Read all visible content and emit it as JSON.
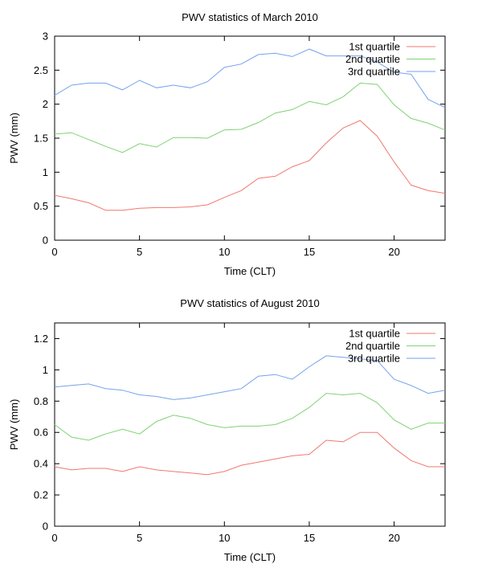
{
  "chart_data": [
    {
      "type": "line",
      "title": "PWV statistics of March 2010",
      "xlabel": "Time (CLT)",
      "ylabel": "PWV (mm)",
      "xlim": [
        0,
        23
      ],
      "ylim": [
        0,
        3
      ],
      "xticks": [
        0,
        5,
        10,
        15,
        20
      ],
      "xtick_labels": [
        "0",
        "5",
        "10",
        "15",
        "20"
      ],
      "yticks": [
        0,
        0.5,
        1,
        1.5,
        2,
        2.5,
        3
      ],
      "ytick_labels": [
        "0",
        "0.5",
        "1",
        "1.5",
        "2",
        "2.5",
        "3"
      ],
      "grid": false,
      "legend_position": "top-right",
      "x": [
        0,
        1,
        2,
        3,
        4,
        5,
        6,
        7,
        8,
        9,
        10,
        11,
        12,
        13,
        14,
        15,
        16,
        17,
        18,
        19,
        20,
        21,
        22,
        23
      ],
      "series": [
        {
          "name": "1st quartile",
          "color": "#f0786e",
          "values": [
            0.66,
            0.61,
            0.55,
            0.44,
            0.44,
            0.47,
            0.48,
            0.48,
            0.49,
            0.52,
            0.63,
            0.73,
            0.91,
            0.94,
            1.08,
            1.17,
            1.43,
            1.65,
            1.76,
            1.53,
            1.15,
            0.81,
            0.73,
            0.69
          ]
        },
        {
          "name": "2nd quartile",
          "color": "#7ed373",
          "values": [
            1.56,
            1.58,
            1.48,
            1.38,
            1.29,
            1.42,
            1.37,
            1.51,
            1.51,
            1.5,
            1.62,
            1.63,
            1.73,
            1.87,
            1.92,
            2.04,
            1.99,
            2.11,
            2.31,
            2.29,
            1.99,
            1.79,
            1.72,
            1.62
          ]
        },
        {
          "name": "3rd quartile",
          "color": "#76a2ec",
          "values": [
            2.13,
            2.28,
            2.31,
            2.31,
            2.21,
            2.35,
            2.24,
            2.28,
            2.24,
            2.33,
            2.54,
            2.59,
            2.73,
            2.75,
            2.7,
            2.81,
            2.71,
            2.71,
            2.71,
            2.62,
            2.47,
            2.44,
            2.07,
            1.95
          ]
        }
      ]
    },
    {
      "type": "line",
      "title": "PWV statistics of August 2010",
      "xlabel": "Time (CLT)",
      "ylabel": "PWV (mm)",
      "xlim": [
        0,
        23
      ],
      "ylim": [
        0,
        1.3
      ],
      "xticks": [
        0,
        5,
        10,
        15,
        20
      ],
      "xtick_labels": [
        "0",
        "5",
        "10",
        "15",
        "20"
      ],
      "yticks": [
        0,
        0.2,
        0.4,
        0.6,
        0.8,
        1,
        1.2
      ],
      "ytick_labels": [
        "0",
        "0.2",
        "0.4",
        "0.6",
        "0.8",
        "1",
        "1.2"
      ],
      "grid": false,
      "legend_position": "top-right",
      "x": [
        0,
        1,
        2,
        3,
        4,
        5,
        6,
        7,
        8,
        9,
        10,
        11,
        12,
        13,
        14,
        15,
        16,
        17,
        18,
        19,
        20,
        21,
        22,
        23
      ],
      "series": [
        {
          "name": "1st quartile",
          "color": "#f0786e",
          "values": [
            0.38,
            0.36,
            0.37,
            0.37,
            0.35,
            0.38,
            0.36,
            0.35,
            0.34,
            0.33,
            0.35,
            0.39,
            0.41,
            0.43,
            0.45,
            0.46,
            0.55,
            0.54,
            0.6,
            0.6,
            0.5,
            0.42,
            0.38,
            0.38
          ]
        },
        {
          "name": "2nd quartile",
          "color": "#7ed373",
          "values": [
            0.65,
            0.57,
            0.55,
            0.59,
            0.62,
            0.59,
            0.67,
            0.71,
            0.69,
            0.65,
            0.63,
            0.64,
            0.64,
            0.65,
            0.69,
            0.76,
            0.85,
            0.84,
            0.85,
            0.79,
            0.68,
            0.62,
            0.66,
            0.66
          ]
        },
        {
          "name": "3rd quartile",
          "color": "#76a2ec",
          "values": [
            0.89,
            0.9,
            0.91,
            0.88,
            0.87,
            0.84,
            0.83,
            0.81,
            0.82,
            0.84,
            0.86,
            0.88,
            0.96,
            0.97,
            0.94,
            1.02,
            1.09,
            1.08,
            1.07,
            1.06,
            0.94,
            0.9,
            0.85,
            0.87
          ]
        }
      ]
    }
  ]
}
